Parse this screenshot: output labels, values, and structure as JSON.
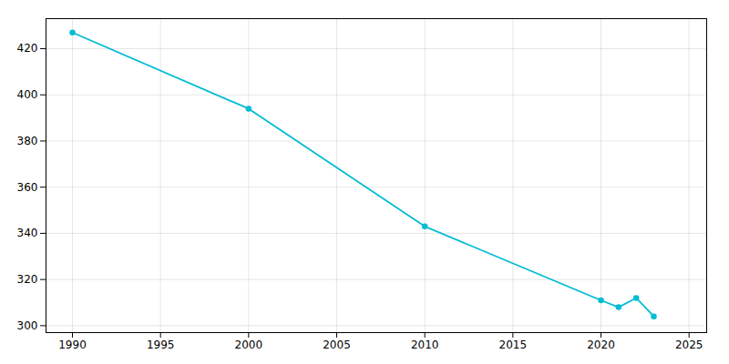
{
  "chart_data": {
    "type": "line",
    "x": [
      1990,
      2000,
      2010,
      2020,
      2021,
      2022,
      2023
    ],
    "values": [
      427,
      394,
      343,
      311,
      308,
      312,
      304
    ],
    "color": "#00BCD4",
    "marker": "circle",
    "xlim": [
      1988.5,
      2026
    ],
    "ylim": [
      297,
      433
    ],
    "xticks": [
      1990,
      1995,
      2000,
      2005,
      2010,
      2015,
      2020,
      2025
    ],
    "yticks": [
      300,
      320,
      340,
      360,
      380,
      400,
      420
    ],
    "grid": true
  }
}
